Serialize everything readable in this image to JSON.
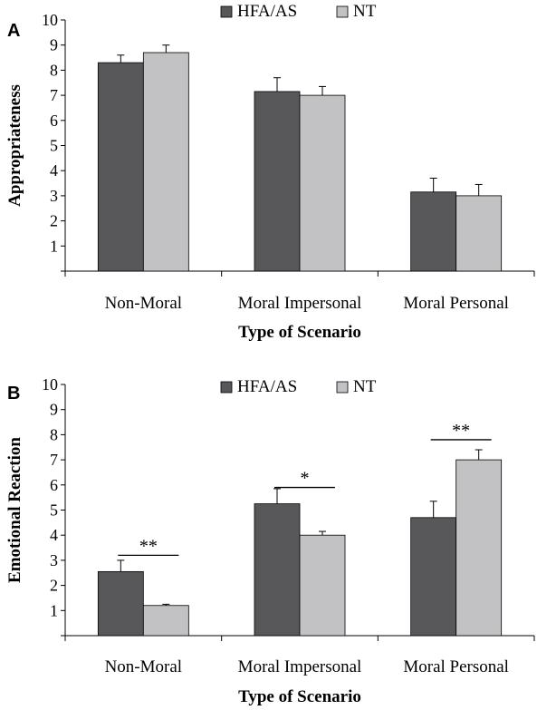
{
  "chart_data": [
    {
      "type": "bar",
      "panel_label": "A",
      "categories": [
        "Non-Moral",
        "Moral Impersonal",
        "Moral Personal"
      ],
      "series": [
        {
          "name": "HFA/AS",
          "color": "#58585a",
          "values": [
            8.3,
            7.15,
            3.15
          ],
          "errors": [
            0.3,
            0.55,
            0.55
          ]
        },
        {
          "name": "NT",
          "color": "#c2c2c4",
          "values": [
            8.7,
            7.0,
            3.0
          ],
          "errors": [
            0.3,
            0.35,
            0.45
          ]
        }
      ],
      "xlabel": "Type of Scenario",
      "ylabel": "Appropriateness",
      "ylim": [
        0,
        10
      ],
      "yticks": [
        "",
        "1",
        "2",
        "3",
        "4",
        "5",
        "6",
        "7",
        "8",
        "9",
        "10"
      ],
      "legend_position": "top-center",
      "grid": false,
      "significance": []
    },
    {
      "type": "bar",
      "panel_label": "B",
      "categories": [
        "Non-Moral",
        "Moral Impersonal",
        "Moral Personal"
      ],
      "series": [
        {
          "name": "HFA/AS",
          "color": "#58585a",
          "values": [
            2.55,
            5.25,
            4.7
          ],
          "errors": [
            0.45,
            0.6,
            0.65
          ]
        },
        {
          "name": "NT",
          "color": "#c2c2c4",
          "values": [
            1.2,
            4.0,
            7.0
          ],
          "errors": [
            0.05,
            0.15,
            0.4
          ]
        }
      ],
      "xlabel": "Type of Scenario",
      "ylabel": "Emotional Reaction",
      "ylim": [
        0,
        10
      ],
      "yticks": [
        "",
        "1",
        "2",
        "3",
        "4",
        "5",
        "6",
        "7",
        "8",
        "9",
        "10"
      ],
      "legend_position": "top-center",
      "grid": false,
      "significance": [
        {
          "category": "Non-Moral",
          "label": "**",
          "level": 3.2
        },
        {
          "category": "Moral Impersonal",
          "label": "*",
          "level": 5.9
        },
        {
          "category": "Moral Personal",
          "label": "**",
          "level": 7.8
        }
      ]
    }
  ]
}
